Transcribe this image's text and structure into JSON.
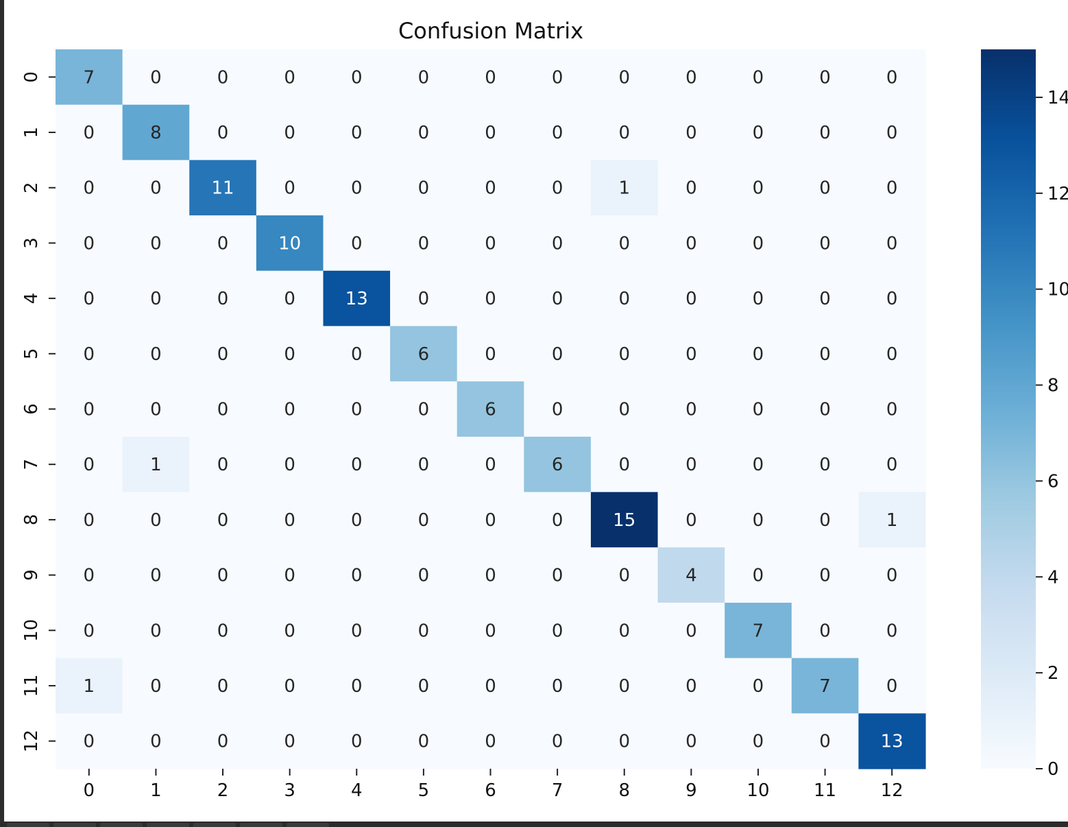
{
  "chart_data": {
    "type": "heatmap",
    "title": "Confusion Matrix",
    "xlabel": "",
    "ylabel": "",
    "x_tick_labels": [
      "0",
      "1",
      "2",
      "3",
      "4",
      "5",
      "6",
      "7",
      "8",
      "9",
      "10",
      "11",
      "12"
    ],
    "y_tick_labels": [
      "0",
      "1",
      "2",
      "3",
      "4",
      "5",
      "6",
      "7",
      "8",
      "9",
      "10",
      "11",
      "12"
    ],
    "matrix": [
      [
        7,
        0,
        0,
        0,
        0,
        0,
        0,
        0,
        0,
        0,
        0,
        0,
        0
      ],
      [
        0,
        8,
        0,
        0,
        0,
        0,
        0,
        0,
        0,
        0,
        0,
        0,
        0
      ],
      [
        0,
        0,
        11,
        0,
        0,
        0,
        0,
        0,
        1,
        0,
        0,
        0,
        0
      ],
      [
        0,
        0,
        0,
        10,
        0,
        0,
        0,
        0,
        0,
        0,
        0,
        0,
        0
      ],
      [
        0,
        0,
        0,
        0,
        13,
        0,
        0,
        0,
        0,
        0,
        0,
        0,
        0
      ],
      [
        0,
        0,
        0,
        0,
        0,
        6,
        0,
        0,
        0,
        0,
        0,
        0,
        0
      ],
      [
        0,
        0,
        0,
        0,
        0,
        0,
        6,
        0,
        0,
        0,
        0,
        0,
        0
      ],
      [
        0,
        1,
        0,
        0,
        0,
        0,
        0,
        6,
        0,
        0,
        0,
        0,
        0
      ],
      [
        0,
        0,
        0,
        0,
        0,
        0,
        0,
        0,
        15,
        0,
        0,
        0,
        1
      ],
      [
        0,
        0,
        0,
        0,
        0,
        0,
        0,
        0,
        0,
        4,
        0,
        0,
        0
      ],
      [
        0,
        0,
        0,
        0,
        0,
        0,
        0,
        0,
        0,
        0,
        7,
        0,
        0
      ],
      [
        1,
        0,
        0,
        0,
        0,
        0,
        0,
        0,
        0,
        0,
        0,
        7,
        0
      ],
      [
        0,
        0,
        0,
        0,
        0,
        0,
        0,
        0,
        0,
        0,
        0,
        0,
        13
      ]
    ],
    "colormap": "Blues",
    "vmin": 0,
    "vmax": 15,
    "colorbar_ticks": [
      "0",
      "2",
      "4",
      "6",
      "8",
      "10",
      "12",
      "14"
    ],
    "annotations": true,
    "grid": false
  }
}
